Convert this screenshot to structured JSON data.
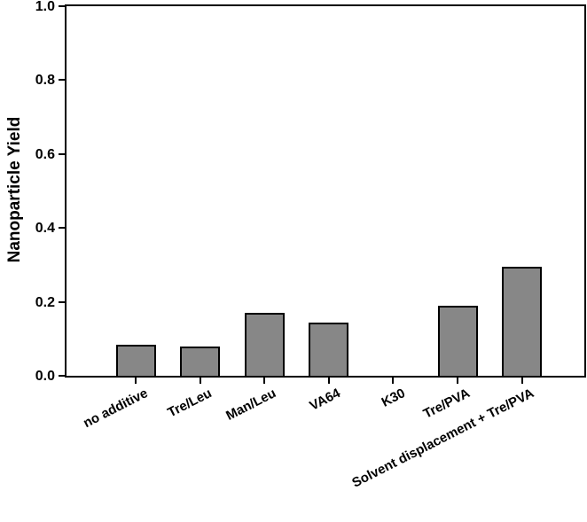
{
  "chart_data": {
    "type": "bar",
    "title": "",
    "ylabel": "Nanoparticle Yield",
    "xlabel": "",
    "categories": [
      "no additive",
      "Tre/Leu",
      "Man/Leu",
      "VA64",
      "K30",
      "Tre/PVA",
      "Solvent displacement + Tre/PVA"
    ],
    "values": [
      0.085,
      0.08,
      0.17,
      0.145,
      0,
      0.19,
      0.295
    ],
    "ylim": [
      0,
      1.0
    ],
    "yticks": [
      0.0,
      0.2,
      0.4,
      0.6,
      0.8,
      1.0
    ],
    "ytick_labels": [
      "0.0",
      "0.2",
      "0.4",
      "0.6",
      "0.8",
      "1.0"
    ],
    "grid": false,
    "legend": "none",
    "frame": "full-box",
    "x_label_rotation_deg": -27,
    "colors": {
      "bar_fill": "#878787",
      "bar_edge": "#000000",
      "axis": "#000000",
      "background": "#ffffff",
      "text": "#000000"
    }
  }
}
